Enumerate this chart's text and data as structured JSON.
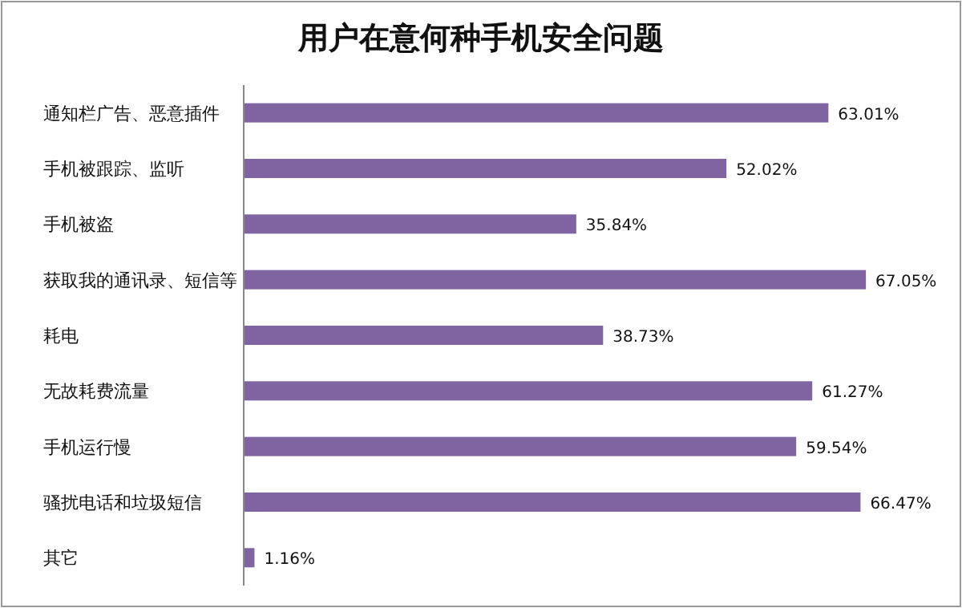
{
  "chart_data": {
    "type": "bar",
    "orientation": "horizontal",
    "title": "用户在意何种手机安全问题",
    "categories": [
      "通知栏广告、恶意插件",
      "手机被跟踪、监听",
      "手机被盗",
      "获取我的通讯录、短信等",
      "耗电",
      "无故耗费流量",
      "手机运行慢",
      "骚扰电话和垃圾短信",
      "其它"
    ],
    "values": [
      63.01,
      52.02,
      35.84,
      67.05,
      38.73,
      61.27,
      59.54,
      66.47,
      1.16
    ],
    "value_labels": [
      "63.01%",
      "52.02%",
      "35.84%",
      "67.05%",
      "38.73%",
      "61.27%",
      "59.54%",
      "66.47%",
      "1.16%"
    ],
    "color": "#8064a2"
  }
}
